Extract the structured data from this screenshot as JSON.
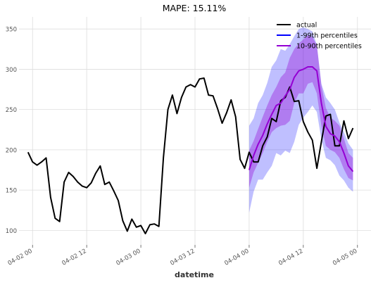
{
  "chart_data": {
    "type": "line",
    "title": "MAPE: 15.11%",
    "xlabel": "datetime",
    "ylabel": "",
    "xlim": [
      "2024-04-01 21:00",
      "2024-04-05 03:00"
    ],
    "ylim": [
      82,
      365
    ],
    "grid": true,
    "legend_position": "top-right",
    "x_ticks": [
      {
        "x": "2024-04-02 00:00",
        "label": "04-02 00"
      },
      {
        "x": "2024-04-02 12:00",
        "label": "04-02 12"
      },
      {
        "x": "2024-04-03 00:00",
        "label": "04-03 00"
      },
      {
        "x": "2024-04-03 12:00",
        "label": "04-03 12"
      },
      {
        "x": "2024-04-04 00:00",
        "label": "04-04 00"
      },
      {
        "x": "2024-04-04 12:00",
        "label": "04-04 12"
      },
      {
        "x": "2024-04-05 00:00",
        "label": "04-05 00"
      }
    ],
    "y_ticks": [
      100,
      150,
      200,
      250,
      300,
      350
    ],
    "colors": {
      "actual": "#000000",
      "band_outer": "#0000ff",
      "band_inner": "#9400d3",
      "median": "#9400d3",
      "grid": "#dddddd",
      "tick": "#555555"
    },
    "series": [
      {
        "name": "actual",
        "color": "#000000",
        "x": [
          "2024-04-01 23:00",
          "2024-04-02 00:00",
          "2024-04-02 01:00",
          "2024-04-02 02:00",
          "2024-04-02 03:00",
          "2024-04-02 04:00",
          "2024-04-02 05:00",
          "2024-04-02 06:00",
          "2024-04-02 07:00",
          "2024-04-02 08:00",
          "2024-04-02 09:00",
          "2024-04-02 10:00",
          "2024-04-02 11:00",
          "2024-04-02 12:00",
          "2024-04-02 13:00",
          "2024-04-02 14:00",
          "2024-04-02 15:00",
          "2024-04-02 16:00",
          "2024-04-02 17:00",
          "2024-04-02 18:00",
          "2024-04-02 19:00",
          "2024-04-02 20:00",
          "2024-04-02 21:00",
          "2024-04-02 22:00",
          "2024-04-02 23:00",
          "2024-04-03 00:00",
          "2024-04-03 01:00",
          "2024-04-03 02:00",
          "2024-04-03 03:00",
          "2024-04-03 04:00",
          "2024-04-03 05:00",
          "2024-04-03 06:00",
          "2024-04-03 07:00",
          "2024-04-03 08:00",
          "2024-04-03 09:00",
          "2024-04-03 10:00",
          "2024-04-03 11:00",
          "2024-04-03 12:00",
          "2024-04-03 13:00",
          "2024-04-03 14:00",
          "2024-04-03 15:00",
          "2024-04-03 16:00",
          "2024-04-03 17:00",
          "2024-04-03 18:00",
          "2024-04-03 19:00",
          "2024-04-03 20:00",
          "2024-04-03 21:00",
          "2024-04-03 22:00",
          "2024-04-03 23:00",
          "2024-04-04 00:00",
          "2024-04-04 01:00",
          "2024-04-04 02:00",
          "2024-04-04 03:00",
          "2024-04-04 04:00",
          "2024-04-04 05:00",
          "2024-04-04 06:00",
          "2024-04-04 07:00",
          "2024-04-04 08:00",
          "2024-04-04 09:00",
          "2024-04-04 10:00",
          "2024-04-04 11:00",
          "2024-04-04 12:00",
          "2024-04-04 13:00",
          "2024-04-04 14:00",
          "2024-04-04 15:00",
          "2024-04-04 16:00",
          "2024-04-04 17:00",
          "2024-04-04 18:00",
          "2024-04-04 19:00",
          "2024-04-04 20:00",
          "2024-04-04 21:00",
          "2024-04-04 22:00",
          "2024-04-04 23:00"
        ],
        "values": [
          197,
          185,
          181,
          185,
          190,
          141,
          115,
          111,
          160,
          172,
          167,
          160,
          155,
          153,
          159,
          171,
          180,
          157,
          160,
          149,
          137,
          112,
          99,
          114,
          104,
          106,
          96,
          107,
          108,
          105,
          190,
          250,
          268,
          245,
          265,
          278,
          281,
          278,
          288,
          289,
          268,
          267,
          251,
          233,
          246,
          262,
          241,
          188,
          177,
          197,
          185,
          185,
          205,
          216,
          239,
          235,
          261,
          265,
          278,
          260,
          261,
          235,
          222,
          212,
          177,
          210,
          242,
          244,
          205,
          205,
          236,
          214,
          227
        ]
      },
      {
        "name": "median",
        "color": "#9400d3",
        "x": [
          "2024-04-04 00:00",
          "2024-04-04 01:00",
          "2024-04-04 02:00",
          "2024-04-04 03:00",
          "2024-04-04 04:00",
          "2024-04-04 05:00",
          "2024-04-04 06:00",
          "2024-04-04 07:00",
          "2024-04-04 08:00",
          "2024-04-04 09:00",
          "2024-04-04 10:00",
          "2024-04-04 11:00",
          "2024-04-04 12:00",
          "2024-04-04 13:00",
          "2024-04-04 14:00",
          "2024-04-04 15:00",
          "2024-04-04 16:00",
          "2024-04-04 17:00",
          "2024-04-04 18:00",
          "2024-04-04 19:00",
          "2024-04-04 20:00",
          "2024-04-04 21:00",
          "2024-04-04 22:00",
          "2024-04-04 23:00"
        ],
        "values": [
          175,
          193,
          207,
          218,
          232,
          244,
          255,
          258,
          267,
          275,
          290,
          298,
          300,
          303,
          303,
          298,
          258,
          229,
          220,
          217,
          210,
          196,
          180,
          173
        ]
      }
    ],
    "bands": [
      {
        "name": "1-99th percentiles",
        "color": "#0000ff",
        "x": [
          "2024-04-04 00:00",
          "2024-04-04 01:00",
          "2024-04-04 02:00",
          "2024-04-04 03:00",
          "2024-04-04 04:00",
          "2024-04-04 05:00",
          "2024-04-04 06:00",
          "2024-04-04 07:00",
          "2024-04-04 08:00",
          "2024-04-04 09:00",
          "2024-04-04 10:00",
          "2024-04-04 11:00",
          "2024-04-04 12:00",
          "2024-04-04 13:00",
          "2024-04-04 14:00",
          "2024-04-04 15:00",
          "2024-04-04 16:00",
          "2024-04-04 17:00",
          "2024-04-04 18:00",
          "2024-04-04 19:00",
          "2024-04-04 20:00",
          "2024-04-04 21:00",
          "2024-04-04 22:00",
          "2024-04-04 23:00"
        ],
        "lower": [
          122,
          148,
          163,
          163,
          172,
          180,
          196,
          193,
          199,
          196,
          210,
          231,
          240,
          247,
          255,
          247,
          213,
          190,
          187,
          181,
          168,
          162,
          153,
          148
        ],
        "upper": [
          230,
          239,
          258,
          268,
          283,
          303,
          311,
          325,
          323,
          331,
          341,
          350,
          352,
          350,
          347,
          330,
          282,
          265,
          258,
          250,
          234,
          222,
          208,
          200
        ]
      },
      {
        "name": "10-90th percentiles",
        "color": "#9400d3",
        "x": [
          "2024-04-04 00:00",
          "2024-04-04 01:00",
          "2024-04-04 02:00",
          "2024-04-04 03:00",
          "2024-04-04 04:00",
          "2024-04-04 05:00",
          "2024-04-04 06:00",
          "2024-04-04 07:00",
          "2024-04-04 08:00",
          "2024-04-04 09:00",
          "2024-04-04 10:00",
          "2024-04-04 11:00",
          "2024-04-04 12:00",
          "2024-04-04 13:00",
          "2024-04-04 14:00",
          "2024-04-04 15:00",
          "2024-04-04 16:00",
          "2024-04-04 17:00",
          "2024-04-04 18:00",
          "2024-04-04 19:00",
          "2024-04-04 20:00",
          "2024-04-04 21:00",
          "2024-04-04 22:00",
          "2024-04-04 23:00"
        ],
        "lower": [
          153,
          172,
          184,
          196,
          210,
          222,
          227,
          230,
          231,
          236,
          258,
          270,
          270,
          282,
          284,
          270,
          230,
          205,
          200,
          197,
          190,
          176,
          165,
          162
        ],
        "upper": [
          199,
          211,
          226,
          241,
          255,
          268,
          278,
          290,
          296,
          314,
          325,
          332,
          337,
          342,
          340,
          330,
          280,
          252,
          240,
          236,
          230,
          214,
          196,
          190
        ]
      }
    ],
    "legend": [
      {
        "label": "actual",
        "color": "#000000"
      },
      {
        "label": "1-99th percentiles",
        "color": "#0000ff"
      },
      {
        "label": "10-90th percentiles",
        "color": "#9400d3"
      }
    ]
  }
}
